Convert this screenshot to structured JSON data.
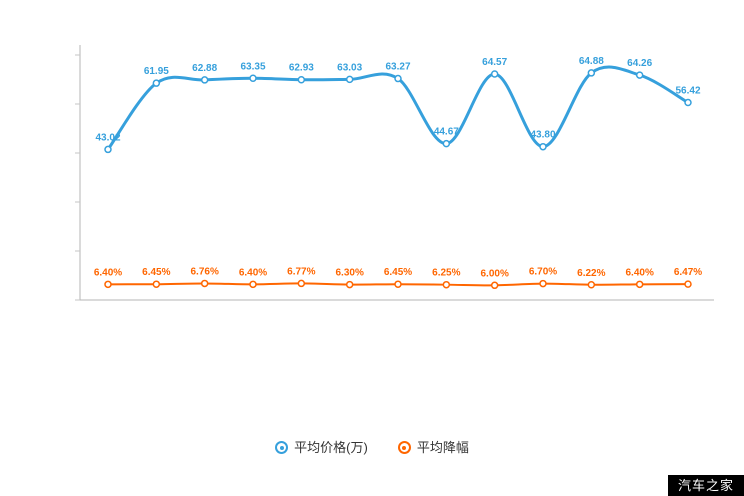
{
  "watermark": {
    "text": "汽车之家",
    "bg": "#000000",
    "color": "#ffffff"
  },
  "legend": {
    "items": [
      {
        "label": "平均价格(万)",
        "color": "#36a0dc"
      },
      {
        "label": "平均降幅",
        "color": "#ff6600"
      }
    ]
  },
  "chart_data": {
    "type": "line",
    "title": "",
    "grid": false,
    "legend_position": "bottom",
    "x_count": 13,
    "x_tick_labels": [],
    "series": [
      {
        "name": "平均价格(万)",
        "color": "#36a0dc",
        "point_fill": "#ffffff",
        "y_min": 0,
        "y_max": 70,
        "values": [
          43.02,
          61.95,
          62.88,
          63.35,
          62.93,
          63.03,
          63.27,
          44.67,
          64.57,
          43.8,
          64.88,
          64.26,
          56.42
        ],
        "labels": [
          "43.02",
          "61.95",
          "62.88",
          "63.35",
          "62.93",
          "63.03",
          "63.27",
          "44.67",
          "64.57",
          "43.80",
          "64.88",
          "64.26",
          "56.42"
        ]
      },
      {
        "name": "平均降幅",
        "color": "#ff6600",
        "point_fill": "#ffffff",
        "y_min": 0,
        "y_max": 100,
        "values": [
          6.4,
          6.45,
          6.76,
          6.4,
          6.77,
          6.3,
          6.45,
          6.25,
          6.0,
          6.7,
          6.22,
          6.4,
          6.47
        ],
        "labels": [
          "6.40%",
          "6.45%",
          "6.76%",
          "6.40%",
          "6.77%",
          "6.30%",
          "6.45%",
          "6.25%",
          "6.00%",
          "6.70%",
          "6.22%",
          "6.40%",
          "6.47%"
        ]
      }
    ]
  }
}
